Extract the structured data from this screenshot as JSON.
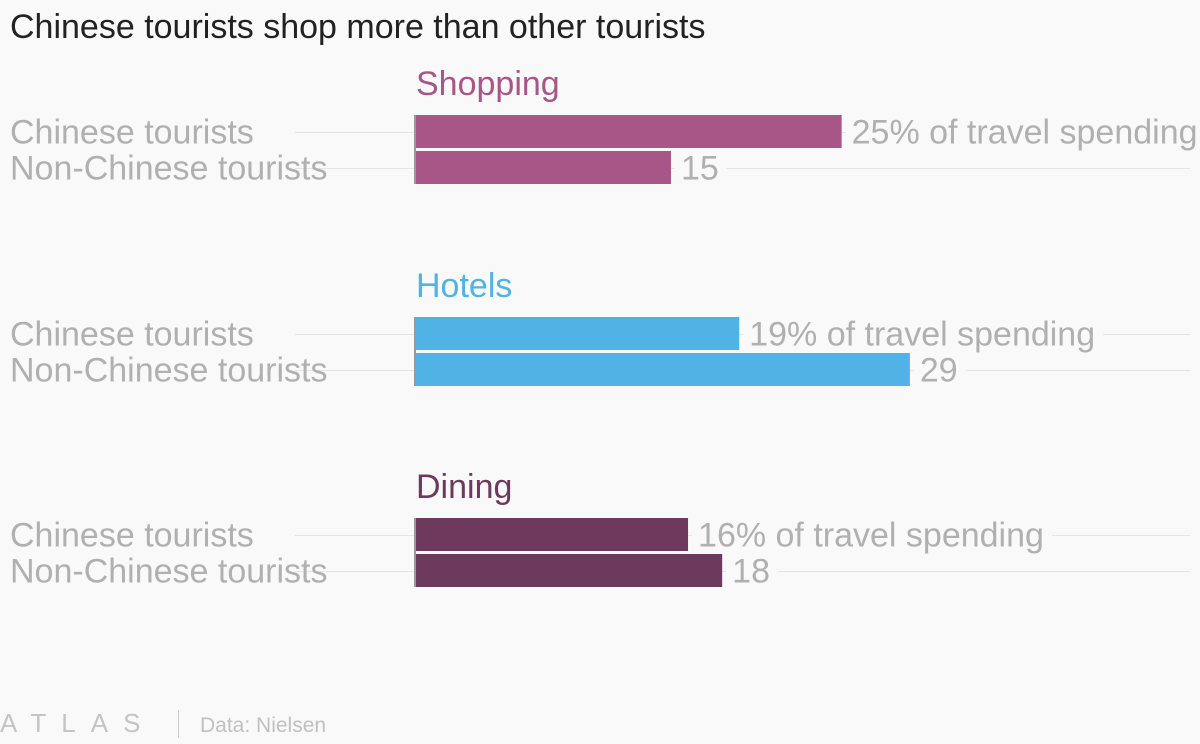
{
  "title": "Chinese tourists shop more than other tourists",
  "source": "Data: Nielsen",
  "logo_text": "ATLAS",
  "chart_data": {
    "type": "bar",
    "orientation": "horizontal",
    "categories": [
      "Chinese tourists",
      "Non-Chinese tourists"
    ],
    "panels": [
      {
        "name": "Shopping",
        "color": "#a85587",
        "values": [
          25,
          15
        ],
        "labels": [
          "25% of travel spending",
          "15"
        ]
      },
      {
        "name": "Hotels",
        "color": "#51b2e5",
        "values": [
          19,
          29
        ],
        "labels": [
          "19% of travel spending",
          "29"
        ]
      },
      {
        "name": "Dining",
        "color": "#6d3a5d",
        "values": [
          16,
          18
        ],
        "labels": [
          "16% of travel spending",
          "18"
        ]
      }
    ],
    "xlim": [
      0,
      46
    ],
    "grid": true,
    "legend": "none"
  }
}
